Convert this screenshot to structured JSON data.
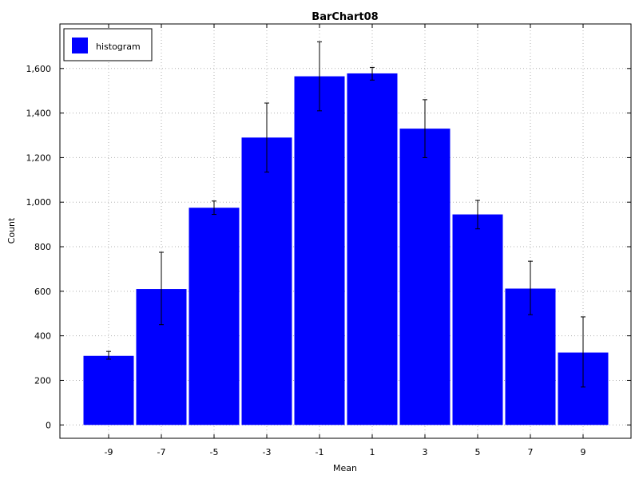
{
  "chart_data": {
    "type": "bar",
    "title": "BarChart08",
    "xlabel": "Mean",
    "ylabel": "Count",
    "categories": [
      "-9",
      "-7",
      "-5",
      "-3",
      "-1",
      "1",
      "3",
      "5",
      "7",
      "9"
    ],
    "series": [
      {
        "name": "histogram",
        "color": "#0000ff",
        "values": [
          310,
          610,
          975,
          1290,
          1565,
          1578,
          1330,
          945,
          612,
          325
        ],
        "error_low": [
          295,
          450,
          945,
          1135,
          1410,
          1548,
          1200,
          880,
          495,
          170
        ],
        "error_high": [
          330,
          775,
          1005,
          1445,
          1720,
          1605,
          1460,
          1008,
          735,
          485
        ]
      }
    ],
    "ylim": [
      -60,
      1800
    ],
    "yticks": [
      0,
      200,
      400,
      600,
      800,
      1000,
      1200,
      1400,
      1600
    ],
    "ytick_labels": [
      "0",
      "200",
      "400",
      "600",
      "800",
      "1,000",
      "1,200",
      "1,400",
      "1,600"
    ],
    "grid": true,
    "legend_position": "top-left"
  }
}
